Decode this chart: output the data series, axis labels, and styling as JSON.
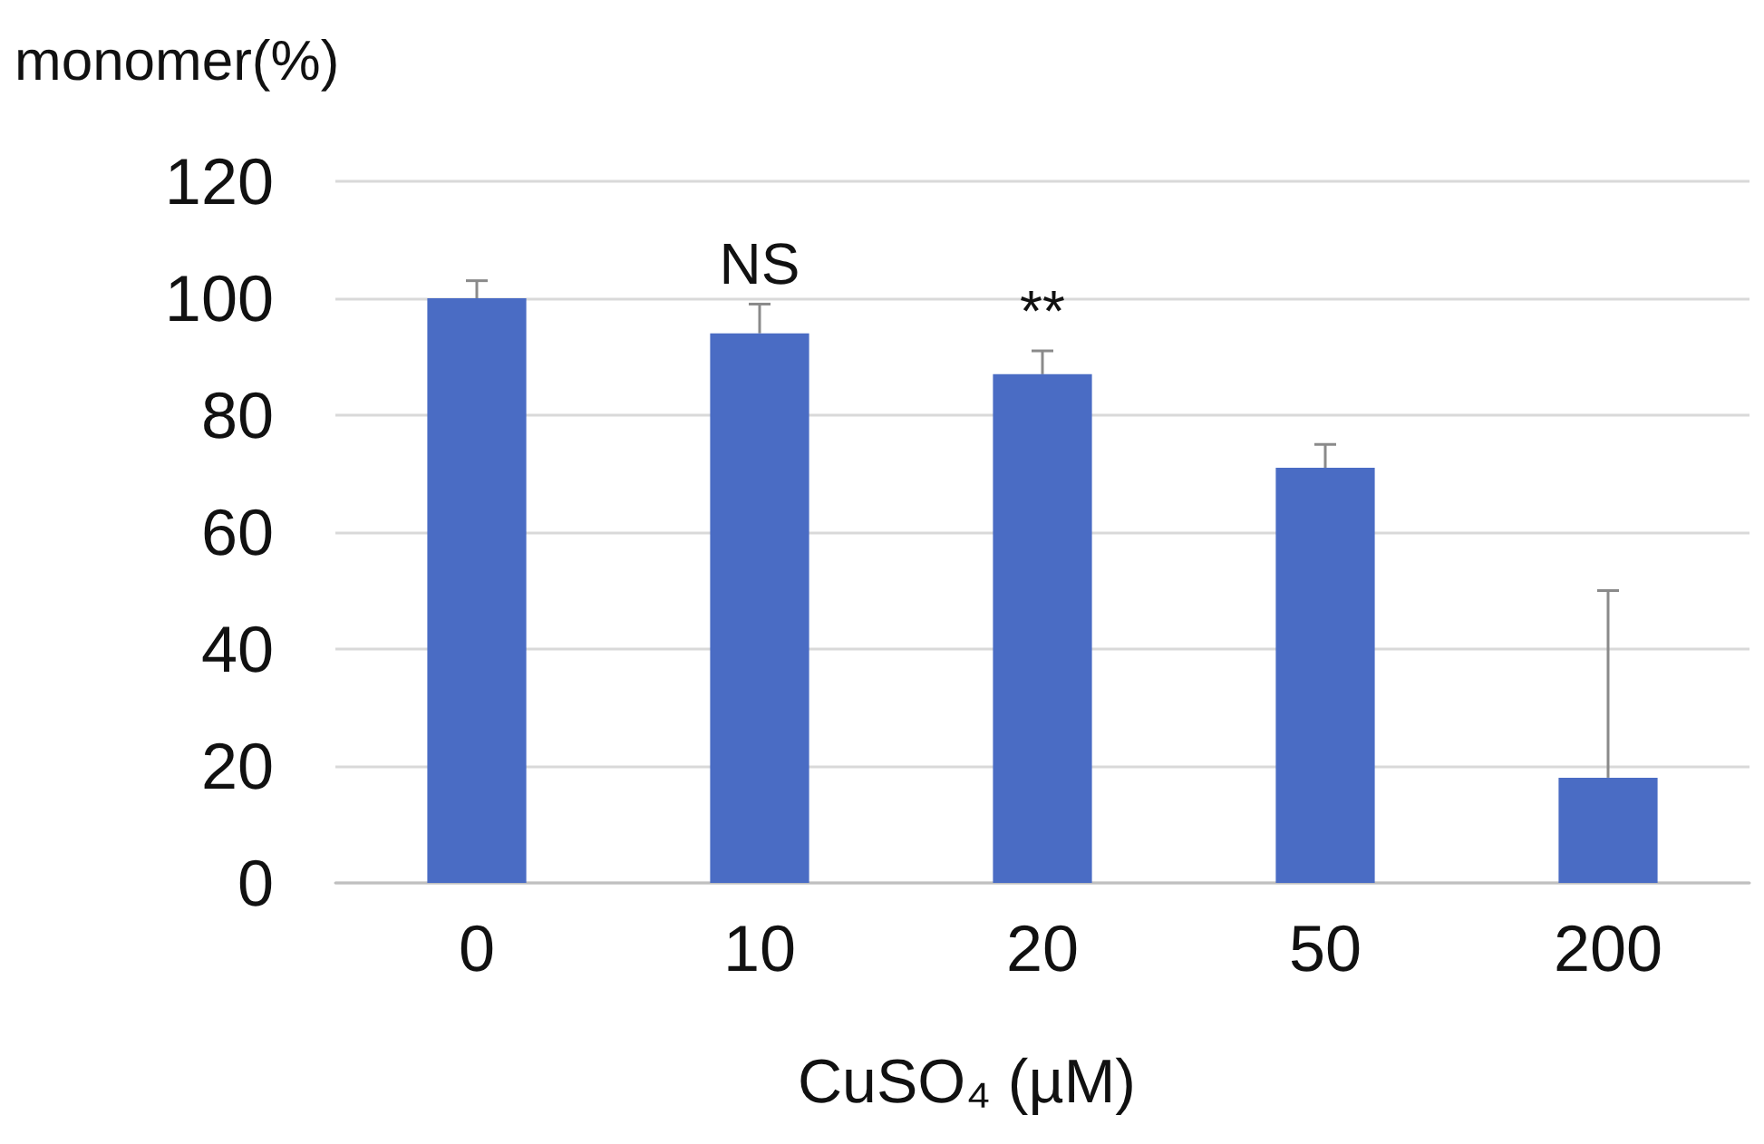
{
  "chart_data": {
    "type": "bar",
    "xlabel": "CuSO₄ (µM)",
    "ylabel": "monomer(%)",
    "categories": [
      "0",
      "10",
      "20",
      "50",
      "200"
    ],
    "values": [
      100,
      94,
      87,
      71,
      18
    ],
    "errors": [
      [
        100,
        103
      ],
      [
        94,
        99
      ],
      [
        87,
        91
      ],
      [
        71,
        75
      ],
      [
        18,
        50
      ]
    ],
    "color": "#4a6cc4",
    "ylim": [
      0,
      120
    ],
    "yticks": [
      0,
      20,
      40,
      60,
      80,
      100,
      120
    ],
    "grid": "y",
    "annotations": [
      {
        "text": "NS",
        "x": "10",
        "y": 99
      },
      {
        "text": "**",
        "x": "20",
        "y": 91
      }
    ]
  }
}
